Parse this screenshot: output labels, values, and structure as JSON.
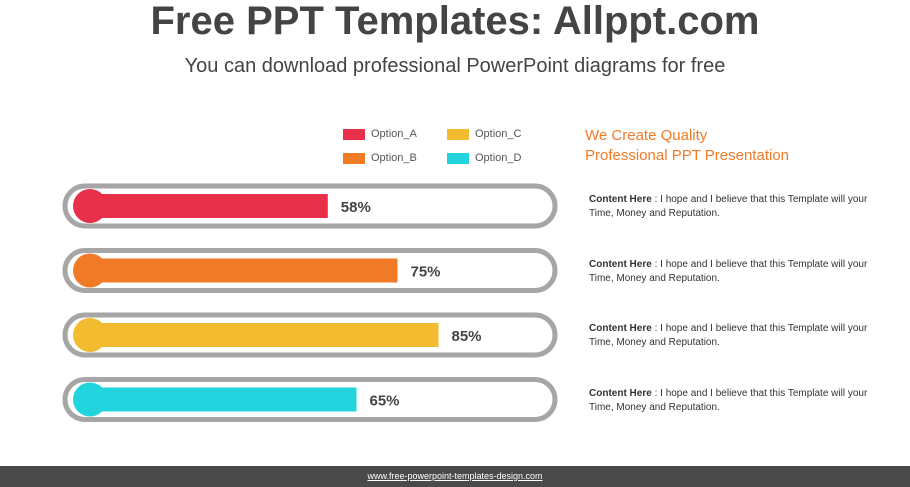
{
  "header": {
    "title": "Free PPT Templates: Allppt.com",
    "subtitle": "You can download professional PowerPoint diagrams for free"
  },
  "legend": [
    {
      "label": "Option_A",
      "color": "#e8304a"
    },
    {
      "label": "Option_B",
      "color": "#f07a26"
    },
    {
      "label": "Option_C",
      "color": "#f2bb30"
    },
    {
      "label": "Option_D",
      "color": "#22d4de"
    }
  ],
  "right_panel": {
    "heading_line1": "We Create Quality",
    "heading_line2": "Professional PPT Presentation",
    "heading_color": "#f07a26",
    "items": [
      {
        "bold": "Content Here",
        "text": " : I hope and I believe that this Template will your Time, Money and Reputation."
      },
      {
        "bold": "Content Here",
        "text": " : I hope and I believe that this Template will your Time, Money and Reputation."
      },
      {
        "bold": "Content Here",
        "text": " : I hope and I believe that this Template will your Time, Money and Reputation."
      },
      {
        "bold": "Content Here",
        "text": " : I hope and I believe that this Template will your Time, Money and Reputation."
      }
    ]
  },
  "chart_data": {
    "type": "bar",
    "orientation": "horizontal",
    "categories": [
      "Option_A",
      "Option_B",
      "Option_C",
      "Option_D"
    ],
    "values": [
      58,
      75,
      85,
      65
    ],
    "value_labels": [
      "58%",
      "75%",
      "85%",
      "65%"
    ],
    "colors": [
      "#e8304a",
      "#f07a26",
      "#f2bb30",
      "#22d4de"
    ],
    "xlim": [
      0,
      100
    ],
    "grid": false,
    "legend_position": "top"
  },
  "footer": {
    "link_text": "www.free-powerpoint-templates-design.com"
  }
}
